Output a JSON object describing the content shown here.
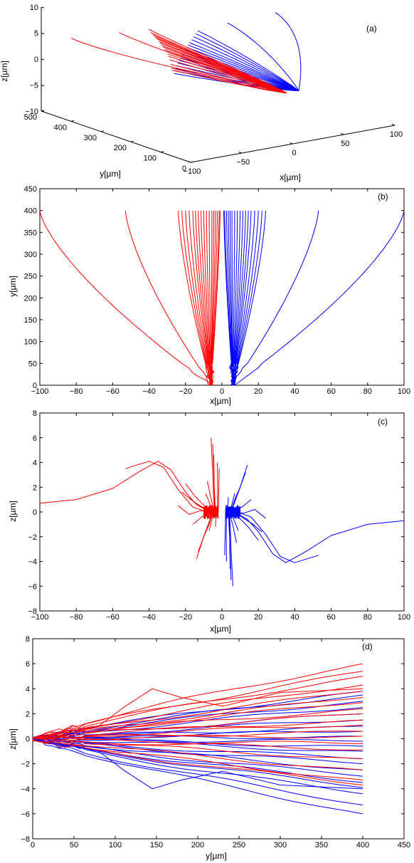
{
  "colors": {
    "red": "#ff0000",
    "blue": "#0000ff",
    "axis": "#000000"
  },
  "chart_data": [
    {
      "panel": "(a)",
      "type": "line",
      "projection": "3d",
      "xlabel": "x[µm]",
      "ylabel": "y[µm]",
      "zlabel": "z[µm]",
      "xlim": [
        -100,
        100
      ],
      "ylim": [
        0,
        500
      ],
      "zlim": [
        -10,
        10
      ],
      "xticks": [
        "−100",
        "−50",
        "0",
        "50",
        "100"
      ],
      "yticks": [
        "0",
        "100",
        "200",
        "300",
        "400",
        "500"
      ],
      "zticks": [
        "−10",
        "−5",
        "0",
        "5",
        "10"
      ],
      "series": [
        {
          "color": "red",
          "description": "trajectories with x < 0"
        },
        {
          "color": "blue",
          "description": "trajectories with x > 0"
        }
      ]
    },
    {
      "panel": "(b)",
      "type": "line",
      "xlabel": "x[µm]",
      "ylabel": "y[µm]",
      "xlim": [
        -100,
        100
      ],
      "ylim": [
        0,
        450
      ],
      "xticks": [
        "−100",
        "−80",
        "−60",
        "−40",
        "−20",
        "0",
        "20",
        "40",
        "60",
        "80",
        "100"
      ],
      "yticks": [
        "0",
        "50",
        "100",
        "150",
        "200",
        "250",
        "300",
        "350",
        "400",
        "450"
      ],
      "red_end_x": [
        -100,
        -53,
        -24,
        -22,
        -20,
        -18,
        -16,
        -14.5,
        -13,
        -11.5,
        -10,
        -8.5,
        -7,
        -5.5,
        -4.5,
        -3.5,
        -2.5,
        -1.5,
        -1
      ],
      "blue_end_x": [
        100,
        53,
        24,
        22,
        20,
        18,
        16,
        14.5,
        13,
        11.5,
        10,
        8.5,
        7,
        5.5,
        4.5,
        3.5,
        2.5,
        1.5,
        1
      ],
      "end_y": 400,
      "start_y": 0,
      "red_start_x": -6,
      "blue_start_x": 6
    },
    {
      "panel": "(c)",
      "type": "line",
      "xlabel": "x[µm]",
      "ylabel": "z[µm]",
      "xlim": [
        -100,
        100
      ],
      "ylim": [
        -8,
        8
      ],
      "xticks": [
        "−100",
        "−80",
        "−60",
        "−40",
        "−20",
        "0",
        "20",
        "40",
        "60",
        "80",
        "100"
      ],
      "yticks": [
        "−8",
        "−6",
        "−4",
        "−2",
        "0",
        "2",
        "4",
        "6",
        "8"
      ],
      "red_paths": [
        [
          [
            -100,
            0.7
          ],
          [
            -80,
            1.0
          ],
          [
            -60,
            1.9
          ],
          [
            -45,
            3.3
          ],
          [
            -35,
            4.1
          ],
          [
            -28,
            3.4
          ],
          [
            -20,
            1.6
          ],
          [
            -14,
            0.6
          ],
          [
            -8,
            0.1
          ],
          [
            -5,
            0
          ]
        ],
        [
          [
            -53,
            3.5
          ],
          [
            -40,
            4.1
          ],
          [
            -32,
            3.6
          ],
          [
            -24,
            1.8
          ],
          [
            -16,
            0.4
          ],
          [
            -10,
            0.1
          ],
          [
            -6,
            0
          ]
        ],
        [
          [
            -24,
            0.5
          ],
          [
            -18,
            -0.2
          ],
          [
            -12,
            0.1
          ],
          [
            -6,
            0
          ]
        ],
        [
          [
            -22,
            1.6
          ],
          [
            -16,
            0.9
          ],
          [
            -10,
            0.3
          ],
          [
            -6,
            0
          ]
        ],
        [
          [
            -20,
            2.3
          ],
          [
            -15,
            1.3
          ],
          [
            -9,
            0.4
          ],
          [
            -5,
            0
          ]
        ],
        [
          [
            -18,
            1.1
          ],
          [
            -12,
            0.5
          ],
          [
            -6,
            0
          ]
        ],
        [
          [
            -16,
            -1.0
          ],
          [
            -11,
            -0.4
          ],
          [
            -6,
            0
          ]
        ],
        [
          [
            -14,
            -3.8
          ],
          [
            -10,
            -2.0
          ],
          [
            -6,
            -0.4
          ],
          [
            -4,
            0
          ]
        ],
        [
          [
            -13,
            -3.2
          ],
          [
            -9,
            -1.6
          ],
          [
            -5,
            0
          ]
        ],
        [
          [
            -10,
            -2.0
          ],
          [
            -7,
            -1.0
          ],
          [
            -5,
            0
          ]
        ],
        [
          [
            -9,
            1.5
          ],
          [
            -6.5,
            0.6
          ],
          [
            -4,
            0
          ]
        ],
        [
          [
            -8,
            2.5
          ],
          [
            -6,
            1.1
          ],
          [
            -4,
            0
          ]
        ],
        [
          [
            -7,
            -1.5
          ],
          [
            -5.5,
            -0.6
          ],
          [
            -4,
            0
          ]
        ],
        [
          [
            -6,
            6.0
          ],
          [
            -5,
            3.0
          ],
          [
            -4.5,
            1.0
          ],
          [
            -4,
            0
          ]
        ],
        [
          [
            -5,
            5.5
          ],
          [
            -4.5,
            3.0
          ],
          [
            -4,
            0
          ]
        ],
        [
          [
            -4.5,
            4.6
          ],
          [
            -4.2,
            2.0
          ],
          [
            -3.5,
            0
          ]
        ],
        [
          [
            -3.5,
            -1.2
          ],
          [
            -3.2,
            -0.5
          ],
          [
            -3,
            0
          ]
        ],
        [
          [
            -2.5,
            4.0
          ],
          [
            -2.4,
            2.0
          ],
          [
            -2.5,
            0
          ]
        ],
        [
          [
            -1.5,
            3.5
          ],
          [
            -1.8,
            1.5
          ],
          [
            -2,
            0
          ]
        ]
      ],
      "red_jitter_x": [
        -10,
        -2
      ],
      "blue_jitter_x": [
        2,
        10
      ]
    },
    {
      "panel": "(d)",
      "type": "line",
      "xlabel": "y[µm]",
      "ylabel": "z[µm]",
      "xlim": [
        0,
        450
      ],
      "ylim": [
        -8,
        8
      ],
      "xticks": [
        "0",
        "50",
        "100",
        "150",
        "200",
        "250",
        "300",
        "350",
        "400",
        "450"
      ],
      "yticks": [
        "−8",
        "−6",
        "−4",
        "−2",
        "0",
        "2",
        "4",
        "6",
        "8"
      ],
      "end_x": 400,
      "red_end_z": [
        6.0,
        5.4,
        5.0,
        4.3,
        3.8,
        3.3,
        2.9,
        2.4,
        2.0,
        1.5,
        1.1,
        0.6,
        0.2,
        -0.4,
        -0.9,
        -1.6,
        -2.5,
        -3.3,
        -3.7
      ],
      "blue_end_z": [
        3.8,
        3.5,
        3.0,
        2.5,
        2.0,
        1.5,
        1.0,
        0.6,
        0.2,
        -0.2,
        -0.6,
        -1.0,
        -1.6,
        -2.0,
        -2.5,
        -3.0,
        -3.5,
        -3.9,
        -4.4,
        -5.3,
        -6.0
      ],
      "bump_red": [
        [
          0,
          0
        ],
        [
          80,
          1.0
        ],
        [
          110,
          2.5
        ],
        [
          145,
          4.0
        ],
        [
          180,
          3.3
        ],
        [
          230,
          2.6
        ],
        [
          300,
          3.7
        ],
        [
          400,
          4.0
        ]
      ],
      "bump_blue": [
        [
          0,
          0
        ],
        [
          80,
          -1.0
        ],
        [
          110,
          -2.5
        ],
        [
          145,
          -4.0
        ],
        [
          180,
          -3.3
        ],
        [
          230,
          -2.6
        ],
        [
          300,
          -3.7
        ],
        [
          400,
          -4.0
        ]
      ]
    }
  ],
  "panels": {
    "a": {
      "label": "(a)",
      "xlabel": "x[µm]",
      "ylabel": "y[µm]",
      "zlabel": "z[µm]"
    },
    "b": {
      "label": "(b)",
      "xlabel": "x[µm]",
      "ylabel": "y[µm]"
    },
    "c": {
      "label": "(c)",
      "xlabel": "x[µm]",
      "ylabel": "z[µm]"
    },
    "d": {
      "label": "(d)",
      "xlabel": "y[µm]",
      "ylabel": "z[µm]"
    }
  }
}
